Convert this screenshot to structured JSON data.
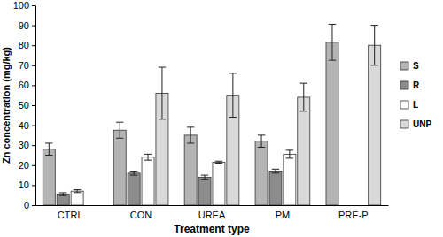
{
  "chart_data": {
    "type": "bar",
    "x_label": "Treatment type",
    "y_label": "Zn concentration (mg/kg)",
    "categories": [
      "CTRL",
      "CON",
      "UREA",
      "PM",
      "PRE-P"
    ],
    "series": [
      {
        "name": "S",
        "color": "#b4b4b4",
        "values": [
          28,
          37.5,
          35,
          32,
          81.5
        ],
        "errors": [
          3,
          4,
          4,
          3,
          9
        ]
      },
      {
        "name": "R",
        "color": "#8c8c8c",
        "values": [
          5.5,
          16,
          14,
          17,
          null
        ],
        "errors": [
          0.7,
          1,
          1,
          1,
          null
        ]
      },
      {
        "name": "L",
        "color": "#ffffff",
        "values": [
          7,
          24,
          21.5,
          25.5,
          null
        ],
        "errors": [
          0.7,
          1.5,
          0.5,
          2,
          null
        ]
      },
      {
        "name": "UNP",
        "color": "#d9d9d9",
        "values": [
          null,
          56,
          55,
          54,
          80
        ],
        "errors": [
          null,
          13,
          11,
          7,
          10
        ]
      }
    ],
    "ylim": [
      0,
      100
    ],
    "yticks": [
      0,
      10,
      20,
      30,
      40,
      50,
      60,
      70,
      80,
      90,
      100
    ],
    "legend": "right",
    "grid": false
  }
}
